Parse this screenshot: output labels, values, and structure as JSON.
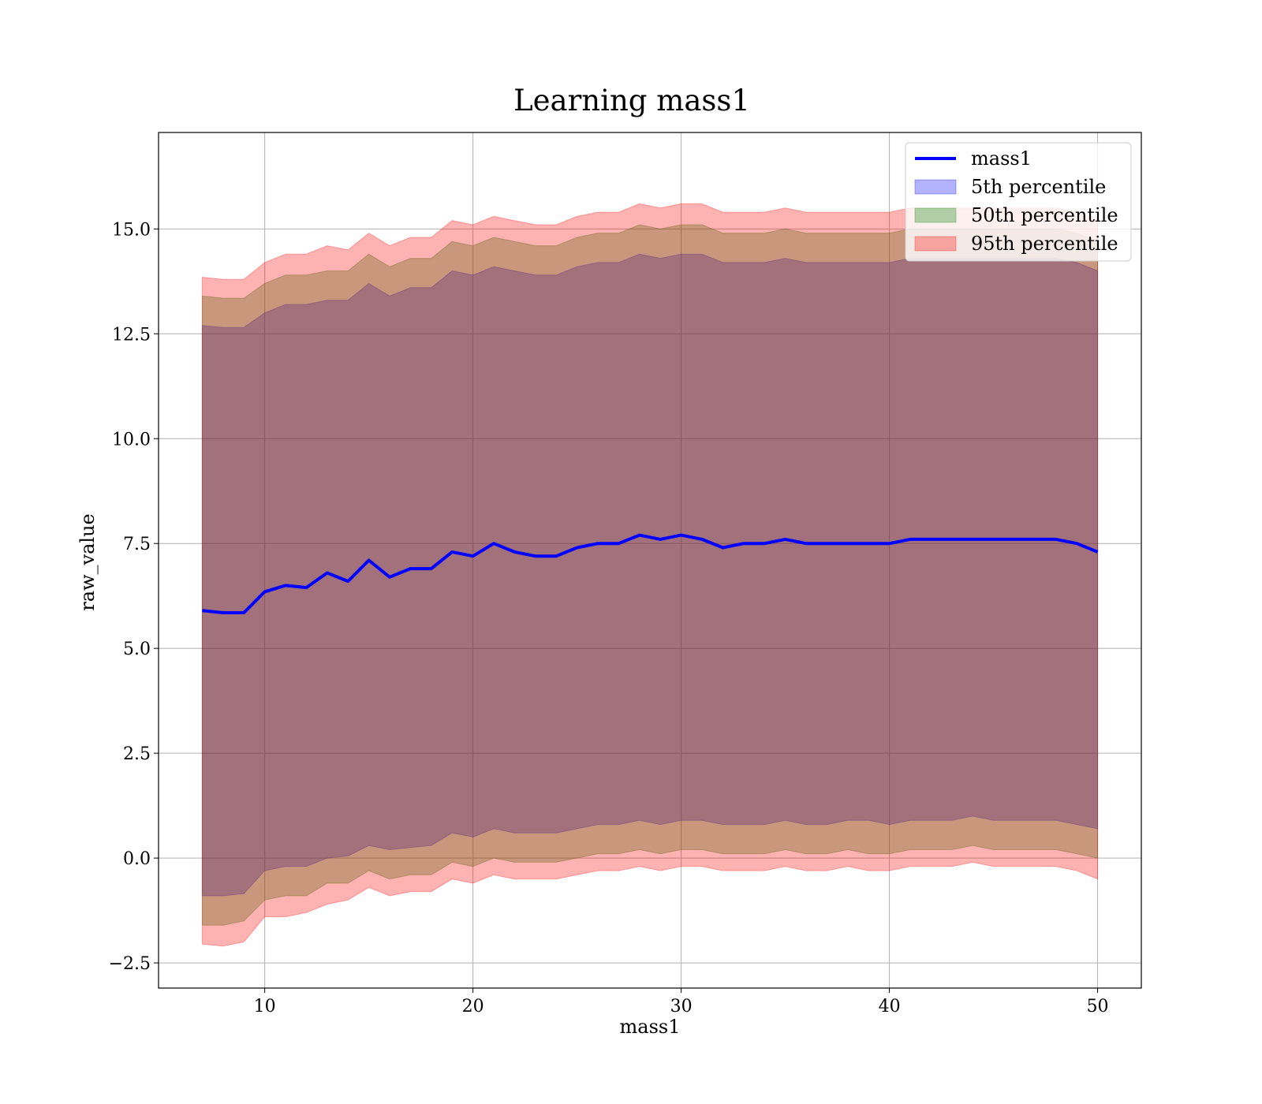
{
  "chart_data": {
    "type": "area",
    "title": "Learning mass1",
    "xlabel": "mass1",
    "ylabel": "raw_value",
    "xlim": [
      4.9,
      52.1
    ],
    "ylim": [
      -3.1,
      17.3
    ],
    "xticks": [
      10,
      20,
      30,
      40,
      50
    ],
    "xtick_labels": [
      "10",
      "20",
      "30",
      "40",
      "50"
    ],
    "yticks": [
      -2.5,
      0.0,
      2.5,
      5.0,
      7.5,
      10.0,
      12.5,
      15.0
    ],
    "ytick_labels": [
      "−2.5",
      "0.0",
      "2.5",
      "5.0",
      "7.5",
      "10.0",
      "12.5",
      "15.0"
    ],
    "grid": true,
    "legend_position": "top-right",
    "x": [
      7,
      8,
      9,
      10,
      11,
      12,
      13,
      14,
      15,
      16,
      17,
      18,
      19,
      20,
      21,
      22,
      23,
      24,
      25,
      26,
      27,
      28,
      29,
      30,
      31,
      32,
      33,
      34,
      35,
      36,
      37,
      38,
      39,
      40,
      41,
      42,
      43,
      44,
      45,
      46,
      47,
      48,
      49,
      50
    ],
    "series": [
      {
        "name": "mass1",
        "kind": "line",
        "color": "#0000ff",
        "values": [
          5.9,
          5.85,
          5.85,
          6.35,
          6.5,
          6.45,
          6.8,
          6.6,
          7.1,
          6.7,
          6.9,
          6.9,
          7.3,
          7.2,
          7.5,
          7.3,
          7.2,
          7.2,
          7.4,
          7.5,
          7.5,
          7.7,
          7.6,
          7.7,
          7.6,
          7.4,
          7.5,
          7.5,
          7.6,
          7.5,
          7.5,
          7.5,
          7.5,
          7.5,
          7.6,
          7.6,
          7.6,
          7.6,
          7.6,
          7.6,
          7.6,
          7.6,
          7.5,
          7.3
        ]
      },
      {
        "name": "5th percentile",
        "kind": "band",
        "color": "#0000ff",
        "lower": [
          -0.9,
          -0.9,
          -0.85,
          -0.3,
          -0.2,
          -0.2,
          0.0,
          0.05,
          0.3,
          0.2,
          0.25,
          0.3,
          0.6,
          0.5,
          0.7,
          0.6,
          0.6,
          0.6,
          0.7,
          0.8,
          0.8,
          0.9,
          0.8,
          0.9,
          0.9,
          0.8,
          0.8,
          0.8,
          0.9,
          0.8,
          0.8,
          0.9,
          0.9,
          0.8,
          0.9,
          0.9,
          0.9,
          1.0,
          0.9,
          0.9,
          0.9,
          0.9,
          0.8,
          0.7
        ],
        "upper": [
          12.7,
          12.65,
          12.65,
          13.0,
          13.2,
          13.2,
          13.3,
          13.3,
          13.7,
          13.4,
          13.6,
          13.6,
          14.0,
          13.9,
          14.1,
          14.0,
          13.9,
          13.9,
          14.1,
          14.2,
          14.2,
          14.4,
          14.3,
          14.4,
          14.4,
          14.2,
          14.2,
          14.2,
          14.3,
          14.2,
          14.2,
          14.2,
          14.2,
          14.2,
          14.3,
          14.3,
          14.3,
          14.3,
          14.3,
          14.3,
          14.3,
          14.3,
          14.2,
          14.0
        ]
      },
      {
        "name": "50th percentile",
        "kind": "band",
        "color": "#008000",
        "lower": [
          -1.6,
          -1.6,
          -1.5,
          -1.0,
          -0.9,
          -0.9,
          -0.6,
          -0.6,
          -0.3,
          -0.5,
          -0.4,
          -0.4,
          -0.1,
          -0.2,
          0.0,
          -0.1,
          -0.1,
          -0.1,
          0.0,
          0.1,
          0.1,
          0.2,
          0.1,
          0.2,
          0.2,
          0.1,
          0.1,
          0.1,
          0.2,
          0.1,
          0.1,
          0.2,
          0.1,
          0.1,
          0.2,
          0.2,
          0.2,
          0.3,
          0.2,
          0.2,
          0.2,
          0.2,
          0.1,
          0.0
        ],
        "upper": [
          13.4,
          13.35,
          13.35,
          13.7,
          13.9,
          13.9,
          14.0,
          14.0,
          14.4,
          14.1,
          14.3,
          14.3,
          14.7,
          14.6,
          14.8,
          14.7,
          14.6,
          14.6,
          14.8,
          14.9,
          14.9,
          15.1,
          15.0,
          15.1,
          15.1,
          14.9,
          14.9,
          14.9,
          15.0,
          14.9,
          14.9,
          14.9,
          14.9,
          14.9,
          15.0,
          15.0,
          15.0,
          15.0,
          15.0,
          15.0,
          15.0,
          15.0,
          14.9,
          14.7
        ]
      },
      {
        "name": "95th percentile",
        "kind": "band",
        "color": "#ff0000",
        "lower": [
          -2.05,
          -2.1,
          -2.0,
          -1.4,
          -1.4,
          -1.3,
          -1.1,
          -1.0,
          -0.7,
          -0.9,
          -0.8,
          -0.8,
          -0.5,
          -0.6,
          -0.4,
          -0.5,
          -0.5,
          -0.5,
          -0.4,
          -0.3,
          -0.3,
          -0.2,
          -0.3,
          -0.2,
          -0.2,
          -0.3,
          -0.3,
          -0.3,
          -0.2,
          -0.3,
          -0.3,
          -0.2,
          -0.3,
          -0.3,
          -0.2,
          -0.2,
          -0.2,
          -0.1,
          -0.2,
          -0.2,
          -0.2,
          -0.2,
          -0.3,
          -0.5
        ],
        "upper": [
          13.85,
          13.8,
          13.8,
          14.2,
          14.4,
          14.4,
          14.6,
          14.5,
          14.9,
          14.6,
          14.8,
          14.8,
          15.2,
          15.1,
          15.3,
          15.2,
          15.1,
          15.1,
          15.3,
          15.4,
          15.4,
          15.6,
          15.5,
          15.6,
          15.6,
          15.4,
          15.4,
          15.4,
          15.5,
          15.4,
          15.4,
          15.4,
          15.4,
          15.4,
          15.5,
          15.5,
          15.5,
          15.5,
          15.5,
          15.5,
          15.5,
          15.5,
          15.4,
          15.2
        ]
      }
    ]
  }
}
